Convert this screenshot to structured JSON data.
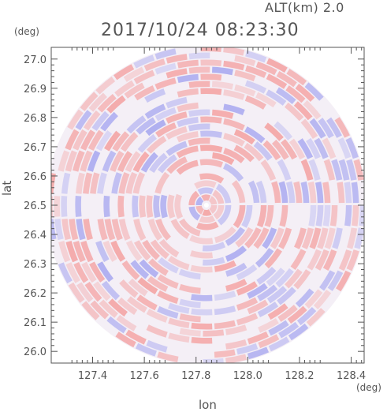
{
  "header": {
    "alt": "ALT(km) 2.0",
    "timestamp": "2017/10/24 08:23:30"
  },
  "chart_data": {
    "type": "heatmap",
    "title": "2017/10/24 08:23:30",
    "xlabel": "lon",
    "ylabel": "lat",
    "x_unit": "(deg)",
    "y_unit": "(deg)",
    "xlim": [
      127.24,
      128.45
    ],
    "ylim": [
      25.96,
      27.04
    ],
    "x_ticks": [
      {
        "value": 127.4,
        "label": "127.4"
      },
      {
        "value": 127.6,
        "label": "127.6"
      },
      {
        "value": 127.8,
        "label": "127.8"
      },
      {
        "value": 128.0,
        "label": "128.0"
      },
      {
        "value": 128.2,
        "label": "128.2"
      },
      {
        "value": 128.4,
        "label": "128.4"
      }
    ],
    "y_ticks": [
      {
        "value": 26.0,
        "label": "26.0"
      },
      {
        "value": 26.1,
        "label": "26.1"
      },
      {
        "value": 26.2,
        "label": "26.2"
      },
      {
        "value": 26.3,
        "label": "26.3"
      },
      {
        "value": 26.4,
        "label": "26.4"
      },
      {
        "value": 26.5,
        "label": "26.5"
      },
      {
        "value": 26.6,
        "label": "26.6"
      },
      {
        "value": 26.7,
        "label": "26.7"
      },
      {
        "value": 26.8,
        "label": "26.8"
      },
      {
        "value": 26.9,
        "label": "26.9"
      },
      {
        "value": 27.0,
        "label": "27.0"
      }
    ],
    "radar_center": {
      "lon": 127.84,
      "lat": 26.5
    },
    "radar_radius_deg_lat": 0.55,
    "colors": {
      "positive": "#f4a3a3",
      "negative": "#a8a8f0",
      "neutral": "#f4eff6",
      "axis": "#555555"
    },
    "grid": false
  }
}
